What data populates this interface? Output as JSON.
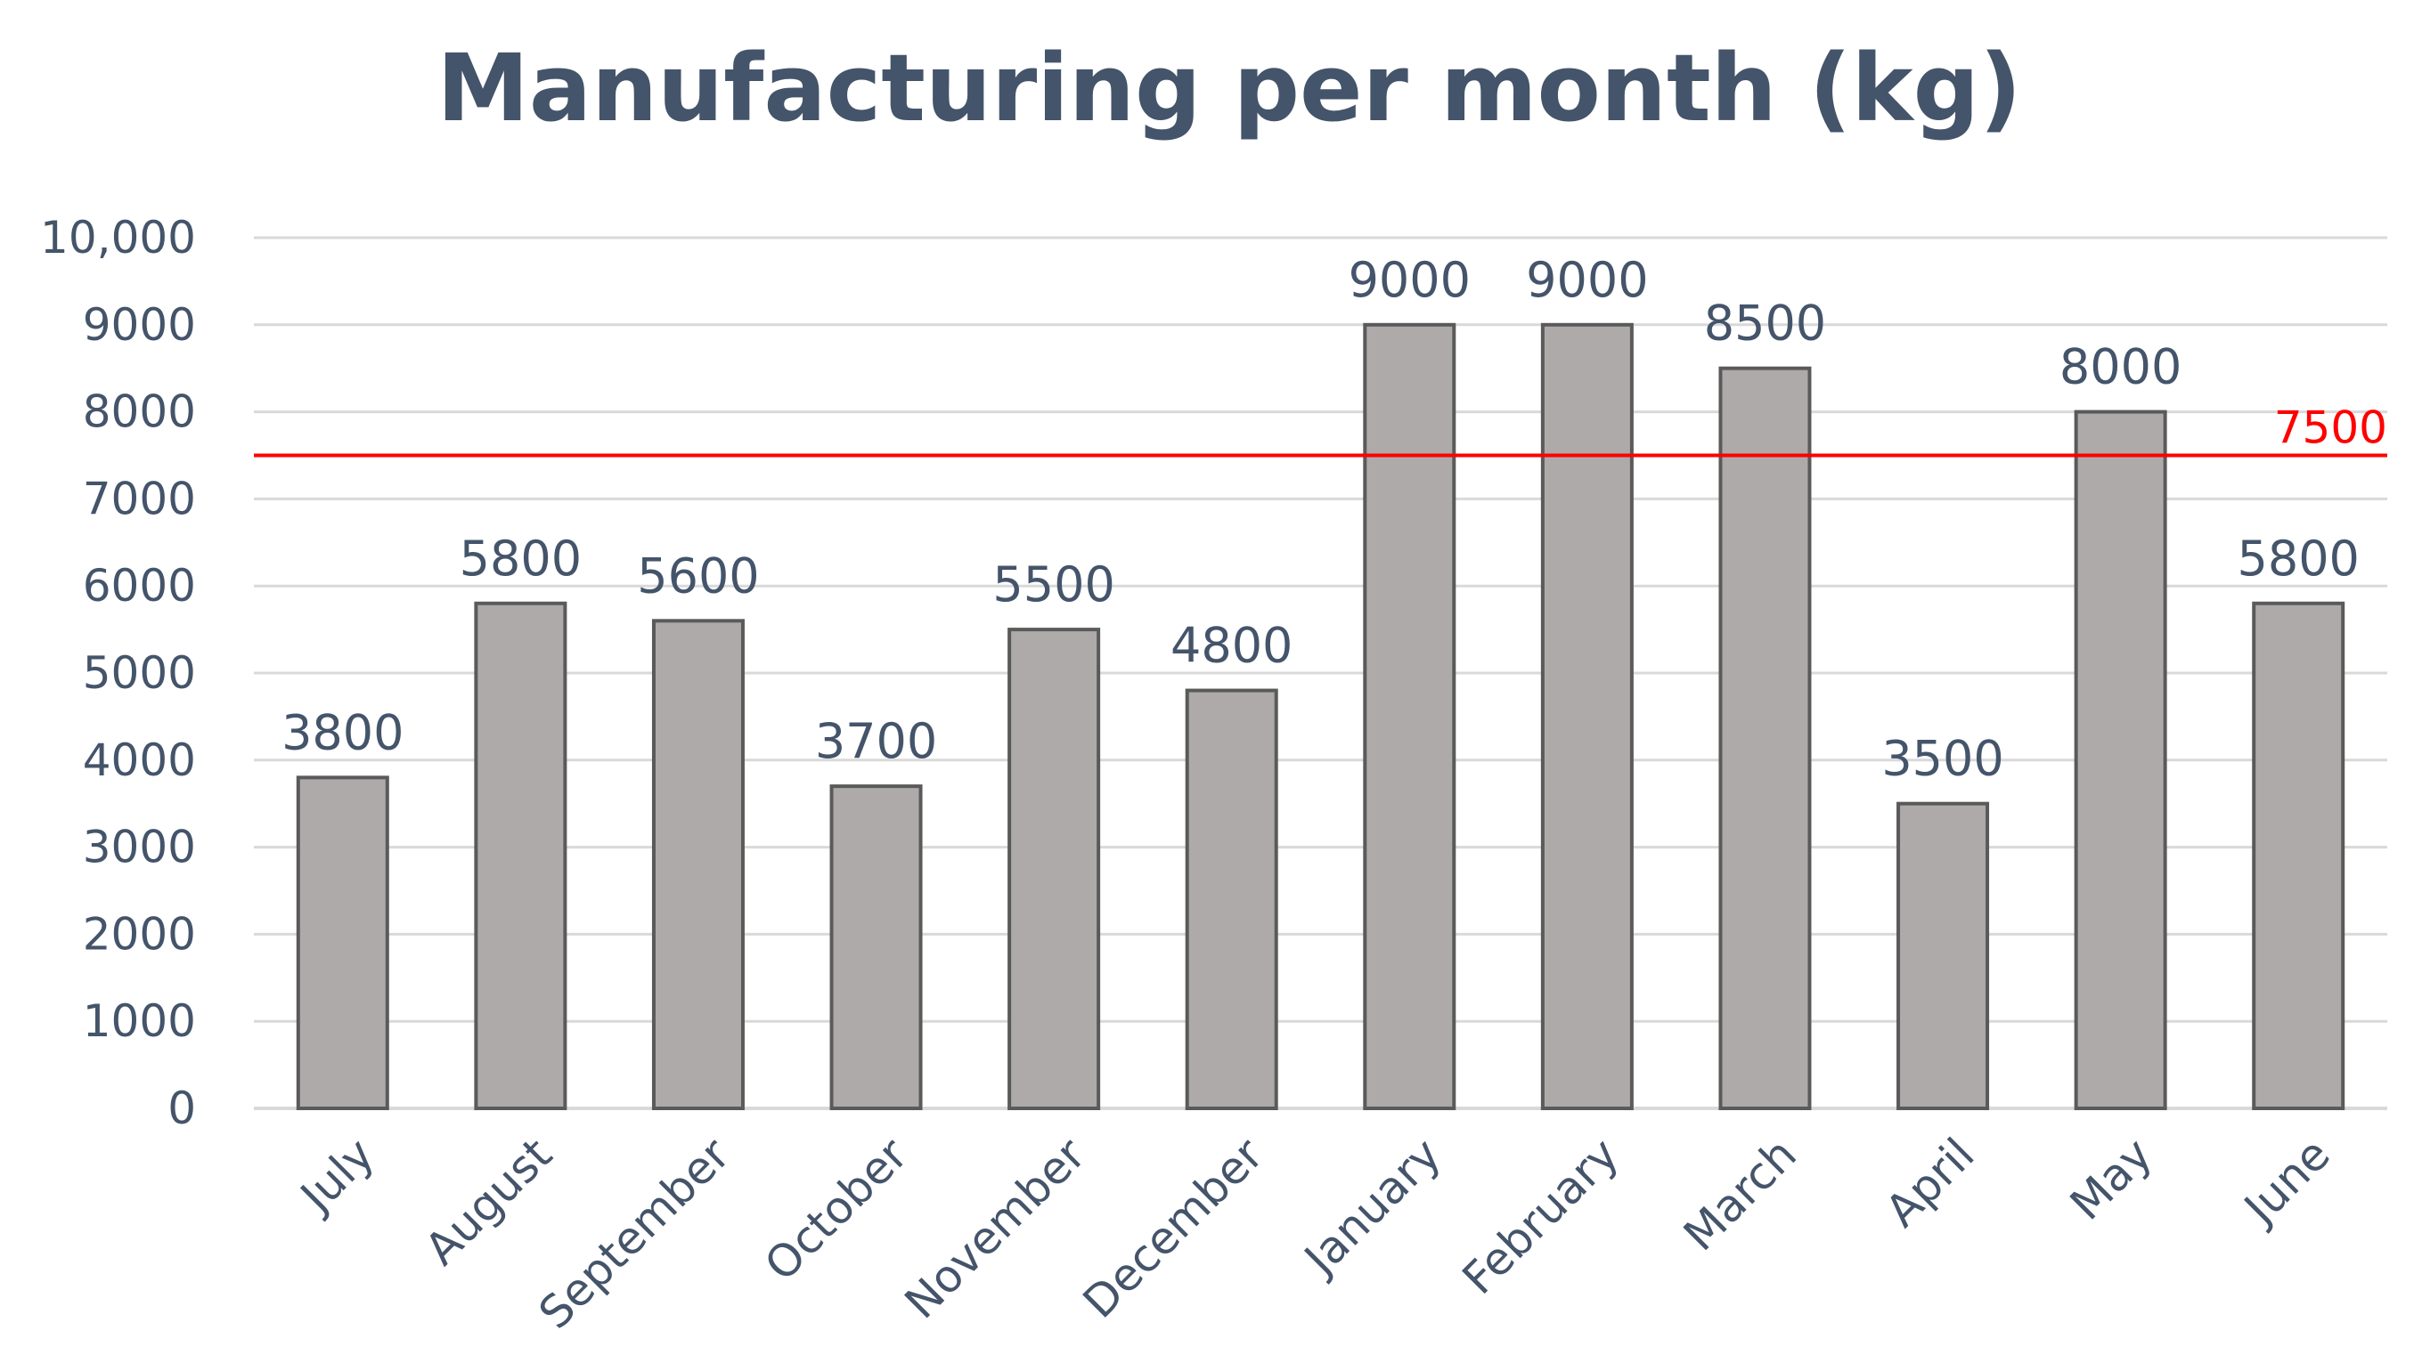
{
  "chart_data": {
    "type": "bar",
    "title": "Manufacturing per month (kg)",
    "xlabel": "",
    "ylabel": "",
    "categories": [
      "July",
      "August",
      "September",
      "October",
      "November",
      "December",
      "January",
      "February",
      "March",
      "April",
      "May",
      "June"
    ],
    "values": [
      3800,
      5800,
      5600,
      3700,
      5500,
      4800,
      9000,
      9000,
      8500,
      3500,
      8000,
      5800
    ],
    "data_labels": [
      "3800",
      "5800",
      "5600",
      "3700",
      "5500",
      "4800",
      "9000",
      "9000",
      "8500",
      "3500",
      "8000",
      "5800"
    ],
    "ylim": [
      0,
      10000
    ],
    "yticks": [
      0,
      1000,
      2000,
      3000,
      4000,
      5000,
      6000,
      7000,
      8000,
      9000,
      10000
    ],
    "ytick_labels": [
      "0",
      "1000",
      "2000",
      "3000",
      "4000",
      "5000",
      "6000",
      "7000",
      "8000",
      "9000",
      "10,000"
    ],
    "grid": true,
    "legend": "none",
    "reference_line": {
      "value": 7500,
      "label": "7500",
      "color": "#ff0000"
    },
    "colors": {
      "bar_fill": "#aeaaaa",
      "bar_stroke": "#5a5a5a",
      "text": "#44546a",
      "grid": "#d9d9d9"
    }
  }
}
